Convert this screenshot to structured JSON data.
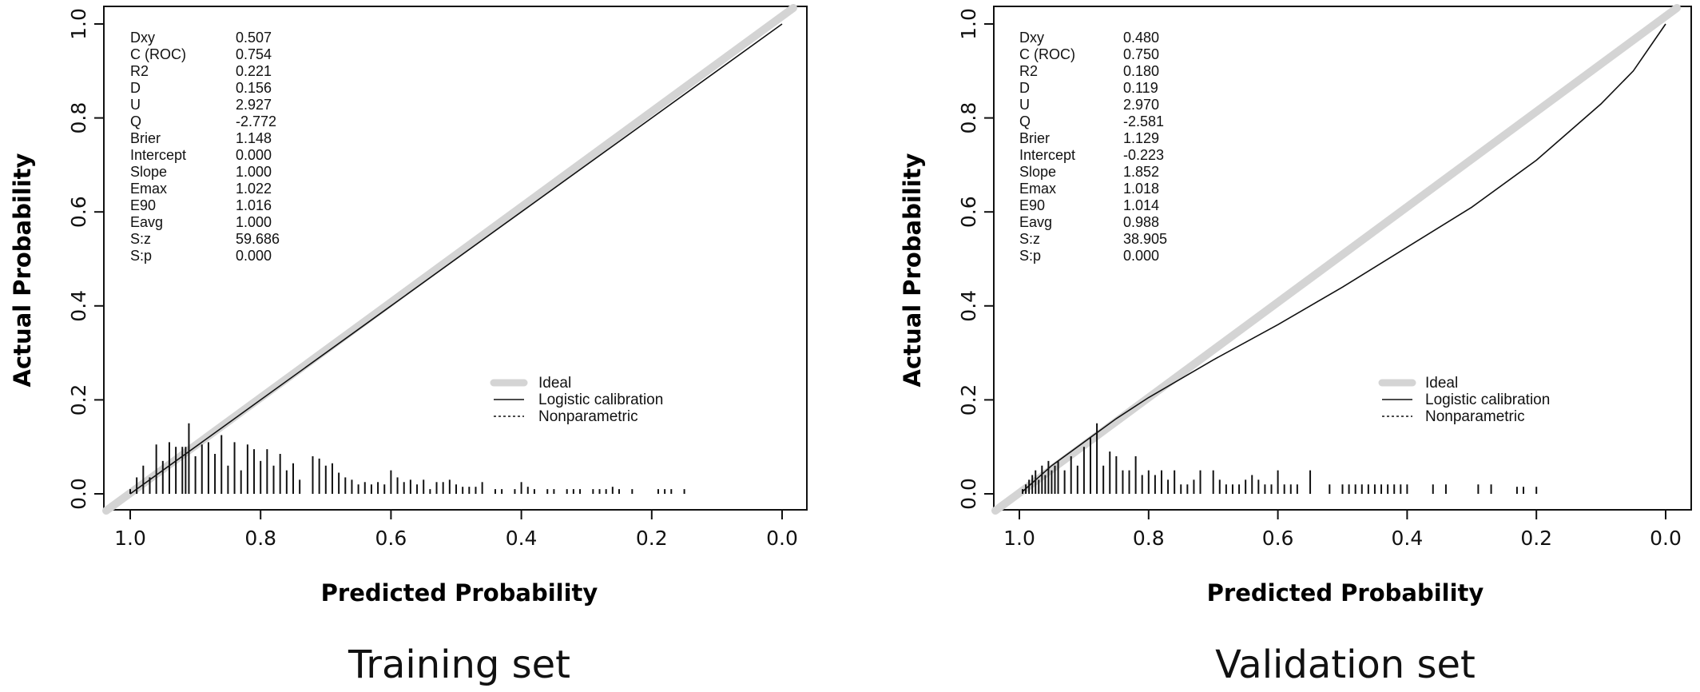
{
  "chart_data": [
    {
      "type": "line",
      "caption": "Training set",
      "xlabel": "Predicted Probability",
      "ylabel": "Actual Probability",
      "xlim": [
        1.0,
        0.0
      ],
      "ylim": [
        0.0,
        1.0
      ],
      "x_ticks": [
        "1.0",
        "0.8",
        "0.6",
        "0.4",
        "0.2",
        "0.0"
      ],
      "y_ticks": [
        "0.0",
        "0.2",
        "0.4",
        "0.6",
        "0.8",
        "1.0"
      ],
      "grid": false,
      "legend_position": "bottom-right",
      "legend": [
        "Ideal",
        "Logistic calibration",
        "Nonparametric"
      ],
      "stats": [
        {
          "name": "Dxy",
          "value": "0.507"
        },
        {
          "name": "C (ROC)",
          "value": "0.754"
        },
        {
          "name": "R2",
          "value": "0.221"
        },
        {
          "name": "D",
          "value": "0.156"
        },
        {
          "name": "U",
          "value": "2.927"
        },
        {
          "name": "Q",
          "value": "-2.772"
        },
        {
          "name": "Brier",
          "value": "1.148"
        },
        {
          "name": "Intercept",
          "value": "0.000"
        },
        {
          "name": "Slope",
          "value": "1.000"
        },
        {
          "name": "Emax",
          "value": "1.022"
        },
        {
          "name": "E90",
          "value": "1.016"
        },
        {
          "name": "Eavg",
          "value": "1.000"
        },
        {
          "name": "S:z",
          "value": "59.686"
        },
        {
          "name": "S:p",
          "value": "0.000"
        }
      ],
      "series": [
        {
          "name": "Ideal",
          "x": [
            1.0,
            0.0
          ],
          "y": [
            0.0,
            1.0
          ]
        },
        {
          "name": "Logistic calibration",
          "x": [
            1.0,
            0.8,
            0.6,
            0.4,
            0.2,
            0.0
          ],
          "y": [
            0.0,
            0.2,
            0.4,
            0.6,
            0.8,
            1.0
          ]
        }
      ],
      "rug": {
        "x": [
          1.0,
          0.99,
          0.98,
          0.97,
          0.96,
          0.95,
          0.94,
          0.93,
          0.92,
          0.915,
          0.91,
          0.9,
          0.89,
          0.88,
          0.87,
          0.86,
          0.85,
          0.84,
          0.83,
          0.82,
          0.81,
          0.8,
          0.79,
          0.78,
          0.77,
          0.76,
          0.75,
          0.74,
          0.72,
          0.71,
          0.7,
          0.69,
          0.68,
          0.67,
          0.66,
          0.65,
          0.64,
          0.63,
          0.62,
          0.61,
          0.6,
          0.59,
          0.58,
          0.57,
          0.56,
          0.55,
          0.54,
          0.53,
          0.52,
          0.51,
          0.5,
          0.49,
          0.48,
          0.47,
          0.46,
          0.44,
          0.43,
          0.41,
          0.4,
          0.39,
          0.38,
          0.36,
          0.35,
          0.33,
          0.32,
          0.31,
          0.29,
          0.28,
          0.27,
          0.26,
          0.25,
          0.23,
          0.19,
          0.18,
          0.17,
          0.15
        ],
        "h": [
          0.01,
          0.035,
          0.06,
          0.035,
          0.105,
          0.07,
          0.11,
          0.1,
          0.1,
          0.1,
          0.15,
          0.08,
          0.105,
          0.11,
          0.085,
          0.125,
          0.06,
          0.11,
          0.05,
          0.105,
          0.095,
          0.07,
          0.095,
          0.06,
          0.085,
          0.05,
          0.065,
          0.03,
          0.08,
          0.075,
          0.06,
          0.065,
          0.045,
          0.035,
          0.03,
          0.02,
          0.025,
          0.02,
          0.025,
          0.02,
          0.05,
          0.035,
          0.025,
          0.03,
          0.02,
          0.03,
          0.01,
          0.025,
          0.025,
          0.03,
          0.02,
          0.015,
          0.015,
          0.015,
          0.025,
          0.01,
          0.01,
          0.01,
          0.025,
          0.015,
          0.01,
          0.01,
          0.01,
          0.01,
          0.01,
          0.01,
          0.01,
          0.01,
          0.01,
          0.015,
          0.01,
          0.01,
          0.01,
          0.01,
          0.01,
          0.01
        ]
      }
    },
    {
      "type": "line",
      "caption": "Validation set",
      "xlabel": "Predicted Probability",
      "ylabel": "Actual Probability",
      "xlim": [
        1.0,
        0.0
      ],
      "ylim": [
        0.0,
        1.0
      ],
      "x_ticks": [
        "1.0",
        "0.8",
        "0.6",
        "0.4",
        "0.2",
        "0.0"
      ],
      "y_ticks": [
        "0.0",
        "0.2",
        "0.4",
        "0.6",
        "0.8",
        "1.0"
      ],
      "grid": false,
      "legend_position": "bottom-right",
      "legend": [
        "Ideal",
        "Logistic calibration",
        "Nonparametric"
      ],
      "stats": [
        {
          "name": "Dxy",
          "value": "0.480"
        },
        {
          "name": "C (ROC)",
          "value": "0.750"
        },
        {
          "name": "R2",
          "value": "0.180"
        },
        {
          "name": "D",
          "value": "0.119"
        },
        {
          "name": "U",
          "value": "2.970"
        },
        {
          "name": "Q",
          "value": "-2.581"
        },
        {
          "name": "Brier",
          "value": "1.129"
        },
        {
          "name": "Intercept",
          "value": "-0.223"
        },
        {
          "name": "Slope",
          "value": "1.852"
        },
        {
          "name": "Emax",
          "value": "1.018"
        },
        {
          "name": "E90",
          "value": "1.014"
        },
        {
          "name": "Eavg",
          "value": "0.988"
        },
        {
          "name": "S:z",
          "value": "38.905"
        },
        {
          "name": "S:p",
          "value": "0.000"
        }
      ],
      "series": [
        {
          "name": "Ideal",
          "x": [
            1.0,
            0.0
          ],
          "y": [
            0.0,
            1.0
          ]
        },
        {
          "name": "Logistic calibration",
          "x": [
            0.995,
            0.95,
            0.9,
            0.85,
            0.8,
            0.7,
            0.6,
            0.5,
            0.4,
            0.3,
            0.2,
            0.1,
            0.05,
            0.02,
            0.0
          ],
          "y": [
            0.005,
            0.06,
            0.11,
            0.16,
            0.205,
            0.285,
            0.36,
            0.44,
            0.525,
            0.61,
            0.71,
            0.83,
            0.9,
            0.96,
            1.0
          ]
        }
      ],
      "rug": {
        "x": [
          0.995,
          0.99,
          0.985,
          0.98,
          0.975,
          0.97,
          0.965,
          0.96,
          0.955,
          0.95,
          0.945,
          0.94,
          0.93,
          0.92,
          0.91,
          0.9,
          0.89,
          0.88,
          0.87,
          0.86,
          0.85,
          0.84,
          0.83,
          0.82,
          0.81,
          0.8,
          0.79,
          0.78,
          0.77,
          0.76,
          0.75,
          0.74,
          0.73,
          0.72,
          0.7,
          0.69,
          0.68,
          0.67,
          0.66,
          0.65,
          0.64,
          0.63,
          0.62,
          0.61,
          0.6,
          0.59,
          0.58,
          0.57,
          0.55,
          0.52,
          0.5,
          0.49,
          0.48,
          0.47,
          0.46,
          0.45,
          0.44,
          0.43,
          0.42,
          0.41,
          0.4,
          0.36,
          0.34,
          0.29,
          0.27,
          0.23,
          0.22,
          0.2
        ],
        "h": [
          0.01,
          0.02,
          0.03,
          0.04,
          0.05,
          0.03,
          0.06,
          0.04,
          0.07,
          0.05,
          0.06,
          0.07,
          0.05,
          0.08,
          0.06,
          0.1,
          0.12,
          0.15,
          0.06,
          0.09,
          0.08,
          0.05,
          0.05,
          0.08,
          0.04,
          0.05,
          0.04,
          0.05,
          0.03,
          0.05,
          0.02,
          0.02,
          0.03,
          0.05,
          0.05,
          0.03,
          0.02,
          0.02,
          0.02,
          0.03,
          0.04,
          0.03,
          0.02,
          0.02,
          0.05,
          0.02,
          0.02,
          0.02,
          0.05,
          0.02,
          0.02,
          0.02,
          0.02,
          0.02,
          0.02,
          0.02,
          0.02,
          0.02,
          0.02,
          0.02,
          0.02,
          0.02,
          0.02,
          0.02,
          0.02,
          0.015,
          0.015,
          0.015
        ]
      }
    }
  ]
}
